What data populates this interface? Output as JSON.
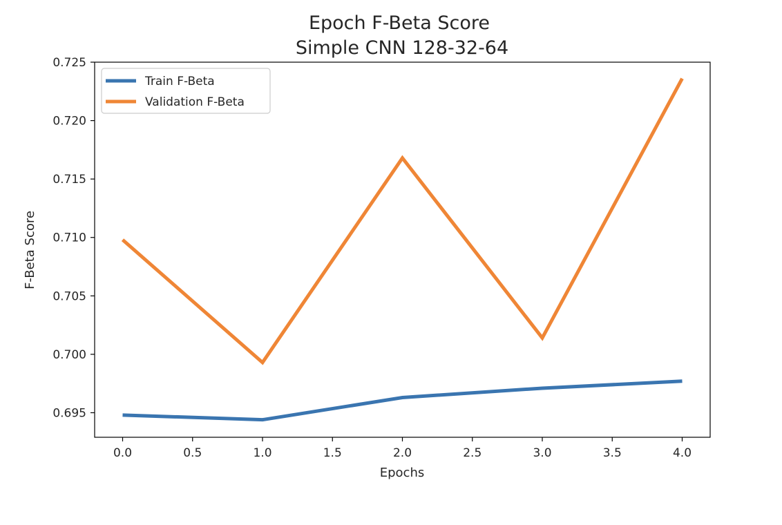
{
  "chart_data": {
    "type": "line",
    "title": "Epoch F-Beta Score",
    "subtitle": "Simple CNN 128-32-64",
    "xlabel": "Epochs",
    "ylabel": "F-Beta Score",
    "x": [
      0,
      1,
      2,
      3,
      4
    ],
    "xlim": [
      -0.2,
      4.2
    ],
    "ylim": [
      0.6929,
      0.725
    ],
    "x_ticks": [
      "0.0",
      "0.5",
      "1.0",
      "1.5",
      "2.0",
      "2.5",
      "3.0",
      "3.5",
      "4.0"
    ],
    "y_ticks": [
      "0.695",
      "0.700",
      "0.705",
      "0.710",
      "0.715",
      "0.720",
      "0.725"
    ],
    "grid": false,
    "legend": "top-left",
    "series": [
      {
        "name": "Train F-Beta",
        "color": "#3a75b0",
        "values": [
          0.6948,
          0.6944,
          0.6963,
          0.6971,
          0.6977
        ]
      },
      {
        "name": "Validation F-Beta",
        "color": "#ef8636",
        "values": [
          0.7098,
          0.6993,
          0.7168,
          0.7014,
          0.7236
        ]
      }
    ]
  }
}
